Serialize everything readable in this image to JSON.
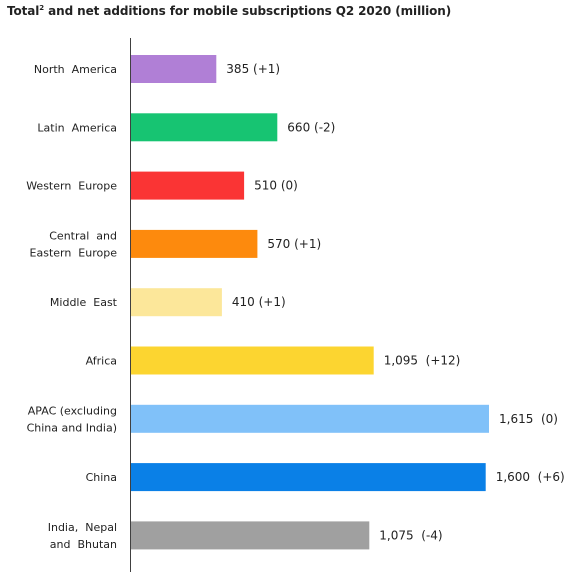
{
  "chart_data": {
    "type": "bar",
    "orientation": "horizontal",
    "title": {
      "main_before": "Total",
      "superscript": "2",
      "main_after": " and net additions for mobile subscriptions  Q2 2020 (million)"
    },
    "categories": [
      [
        "North  America"
      ],
      [
        "Latin  America"
      ],
      [
        "Western  Europe"
      ],
      [
        "Central  and",
        "Eastern  Europe"
      ],
      [
        "Middle  East"
      ],
      [
        "Africa"
      ],
      [
        "APAC (excluding",
        "China and India)"
      ],
      [
        "China"
      ],
      [
        "India,  Nepal",
        "and  Bhutan"
      ]
    ],
    "values": [
      385,
      660,
      510,
      570,
      410,
      1095,
      1615,
      1600,
      1075
    ],
    "net_additions": [
      1,
      -2,
      0,
      1,
      1,
      12,
      0,
      6,
      -4
    ],
    "data_labels": [
      "385 (+1)",
      "660 (-2)",
      "510 (0)",
      "570 (+1)",
      "410 (+1)",
      "1,095  (+12)",
      "1,615  (0)",
      "1,600  (+6)",
      "1,075  (-4)"
    ],
    "colors": [
      "#b07fd6",
      "#17c472",
      "#fa3434",
      "#fd8a0d",
      "#fce79a",
      "#fcd530",
      "#80c1f9",
      "#0a80e7",
      "#a0a0a0"
    ],
    "axis_color": "#404040",
    "xlim": [
      0,
      1650
    ],
    "grid": false,
    "legend": "none"
  }
}
